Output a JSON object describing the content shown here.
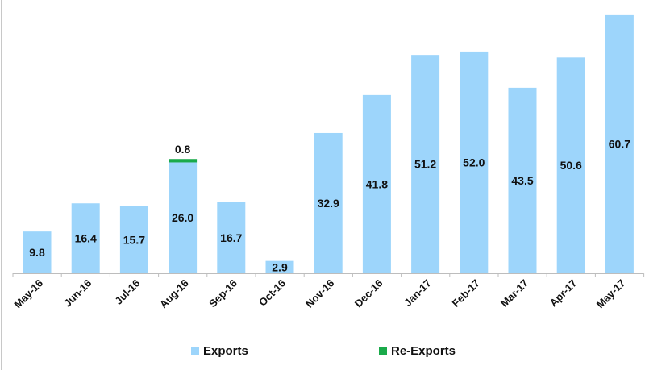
{
  "chart_data": {
    "type": "bar",
    "stacked": true,
    "title": "",
    "xlabel": "",
    "ylabel": "",
    "ylim": [
      0,
      61
    ],
    "grid": false,
    "legend_position": "bottom",
    "categories": [
      "May-16",
      "Jun-16",
      "Jul-16",
      "Aug-16",
      "Sep-16",
      "Oct-16",
      "Nov-16",
      "Dec-16",
      "Jan-17",
      "Feb-17",
      "Mar-17",
      "Apr-17",
      "May-17"
    ],
    "series": [
      {
        "name": "Exports",
        "color": "#9dd5fb",
        "values": [
          9.8,
          16.4,
          15.7,
          26.0,
          16.7,
          2.9,
          32.9,
          41.8,
          51.2,
          52.0,
          43.5,
          50.6,
          60.7
        ],
        "labels": [
          "9.8",
          "16.4",
          "15.7",
          "26.0",
          "16.7",
          "2.9",
          "32.9",
          "41.8",
          "51.2",
          "52.0",
          "43.5",
          "50.6",
          "60.7"
        ]
      },
      {
        "name": "Re-Exports",
        "color": "#1aaa4a",
        "values": [
          0,
          0,
          0,
          0.8,
          0,
          0,
          0,
          0,
          0,
          0,
          0,
          0,
          0
        ],
        "labels": [
          "",
          "",
          "",
          "0.8",
          "",
          "",
          "",
          "",
          "",
          "",
          "",
          "",
          ""
        ]
      }
    ]
  }
}
